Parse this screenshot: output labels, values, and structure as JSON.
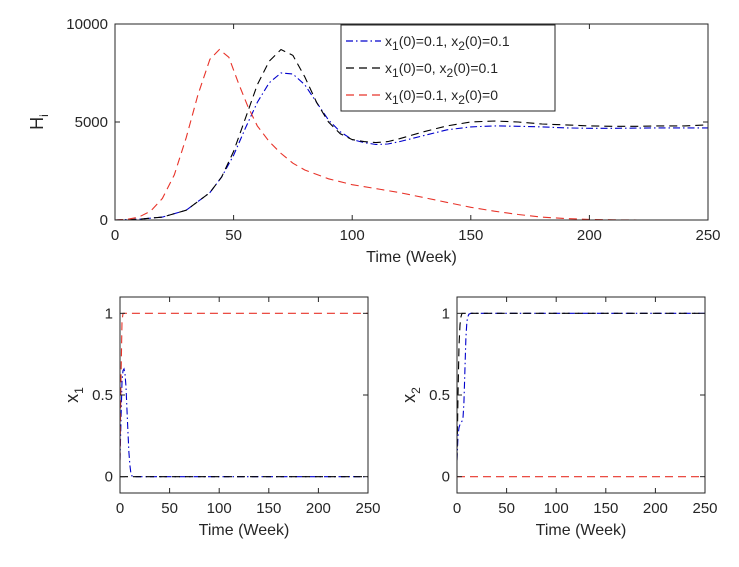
{
  "chart_data": [
    {
      "type": "line",
      "xlabel": "Time (Week)",
      "ylabel": "H",
      "ylabel_sub": "i",
      "xlim": [
        0,
        250
      ],
      "ylim": [
        0,
        10000
      ],
      "xticks": [
        0,
        50,
        100,
        150,
        200,
        250
      ],
      "yticks": [
        0,
        5000,
        10000
      ],
      "grid": false,
      "legend": "top-right",
      "series": [
        {
          "name": "x1(0)=0.1, x2(0)=0.1",
          "label": {
            "a": "x",
            "b": "1",
            "c": "(0)=0.1, x",
            "d": "2",
            "e": "(0)=0.1"
          },
          "color": "#0000cc",
          "dash": "dashdot",
          "x": [
            0,
            10,
            20,
            30,
            40,
            45,
            50,
            55,
            60,
            65,
            70,
            75,
            80,
            85,
            90,
            95,
            100,
            105,
            110,
            115,
            120,
            130,
            140,
            150,
            160,
            170,
            180,
            190,
            200,
            210,
            220,
            230,
            240,
            250
          ],
          "y": [
            0,
            40,
            150,
            500,
            1400,
            2200,
            3300,
            4700,
            6000,
            7000,
            7500,
            7450,
            6900,
            6000,
            5100,
            4500,
            4100,
            3950,
            3850,
            3880,
            4000,
            4300,
            4600,
            4750,
            4800,
            4780,
            4750,
            4700,
            4680,
            4680,
            4690,
            4700,
            4700,
            4700
          ]
        },
        {
          "name": "x1(0)=0, x2(0)=0.1",
          "label": {
            "a": "x",
            "b": "1",
            "c": "(0)=0, x",
            "d": "2",
            "e": "(0)=0.1"
          },
          "color": "#000000",
          "dash": "dash",
          "x": [
            0,
            10,
            20,
            30,
            40,
            45,
            50,
            55,
            60,
            65,
            70,
            75,
            80,
            85,
            90,
            95,
            100,
            105,
            110,
            115,
            120,
            130,
            140,
            150,
            160,
            170,
            180,
            190,
            200,
            210,
            220,
            230,
            240,
            250
          ],
          "y": [
            0,
            40,
            150,
            500,
            1400,
            2200,
            3500,
            5200,
            6900,
            8100,
            8700,
            8400,
            7300,
            6000,
            5000,
            4400,
            4100,
            4000,
            3950,
            4000,
            4150,
            4500,
            4800,
            5000,
            5050,
            5000,
            4900,
            4850,
            4800,
            4780,
            4780,
            4800,
            4800,
            4850
          ]
        },
        {
          "name": "x1(0)=0.1, x2(0)=0",
          "label": {
            "a": "x",
            "b": "1",
            "c": "(0)=0.1, x",
            "d": "2",
            "e": "(0)=0"
          },
          "color": "#e8342a",
          "dash": "dash",
          "x": [
            0,
            5,
            10,
            15,
            20,
            25,
            30,
            35,
            40,
            44,
            48,
            52,
            56,
            60,
            65,
            70,
            75,
            80,
            90,
            100,
            110,
            120,
            130,
            140,
            150,
            160,
            170,
            180,
            190,
            200,
            210,
            220,
            230,
            240,
            250
          ],
          "y": [
            0,
            30,
            150,
            450,
            1100,
            2300,
            4200,
            6400,
            8200,
            8700,
            8300,
            7000,
            5800,
            4800,
            4000,
            3400,
            2900,
            2550,
            2100,
            1800,
            1600,
            1400,
            1150,
            900,
            650,
            450,
            280,
            150,
            70,
            30,
            10,
            0,
            0,
            0,
            0
          ]
        }
      ]
    },
    {
      "type": "line",
      "xlabel": "Time (Week)",
      "ylabel": "x",
      "ylabel_sub": "1",
      "xlim": [
        0,
        250
      ],
      "ylim": [
        -0.1,
        1.1
      ],
      "xticks": [
        0,
        50,
        100,
        150,
        200,
        250
      ],
      "yticks": [
        0,
        0.5,
        1
      ],
      "grid": false,
      "series": [
        {
          "color": "#0000cc",
          "dash": "dashdot",
          "x": [
            0,
            1,
            2,
            3,
            4,
            5,
            6,
            7,
            8,
            9,
            10,
            11,
            12,
            14,
            20,
            250
          ],
          "y": [
            0.1,
            0.35,
            0.58,
            0.65,
            0.66,
            0.63,
            0.55,
            0.42,
            0.28,
            0.15,
            0.07,
            0.02,
            0.005,
            0,
            0,
            0
          ]
        },
        {
          "color": "#000000",
          "dash": "dash",
          "x": [
            0,
            250
          ],
          "y": [
            0,
            0
          ]
        },
        {
          "color": "#e8342a",
          "dash": "dash",
          "x": [
            0,
            1,
            2,
            3,
            250
          ],
          "y": [
            0.1,
            0.6,
            0.95,
            1.0,
            1.0
          ]
        }
      ]
    },
    {
      "type": "line",
      "xlabel": "Time (Week)",
      "ylabel": "x",
      "ylabel_sub": "2",
      "xlim": [
        0,
        250
      ],
      "ylim": [
        -0.1,
        1.1
      ],
      "xticks": [
        0,
        50,
        100,
        150,
        200,
        250
      ],
      "yticks": [
        0,
        0.5,
        1
      ],
      "grid": false,
      "series": [
        {
          "color": "#0000cc",
          "dash": "dashdot",
          "x": [
            0,
            1,
            2,
            3,
            4,
            5,
            6,
            7,
            8,
            9,
            10,
            11,
            12,
            14,
            20,
            250
          ],
          "y": [
            0.1,
            0.25,
            0.3,
            0.32,
            0.33,
            0.34,
            0.36,
            0.45,
            0.65,
            0.85,
            0.95,
            0.98,
            0.995,
            1.0,
            1.0,
            1.0
          ]
        },
        {
          "color": "#000000",
          "dash": "dash",
          "x": [
            0,
            1,
            2,
            3,
            4,
            5,
            250
          ],
          "y": [
            0.1,
            0.5,
            0.8,
            0.93,
            0.98,
            1.0,
            1.0
          ]
        },
        {
          "color": "#e8342a",
          "dash": "dash",
          "x": [
            0,
            250
          ],
          "y": [
            0,
            0
          ]
        }
      ]
    }
  ]
}
